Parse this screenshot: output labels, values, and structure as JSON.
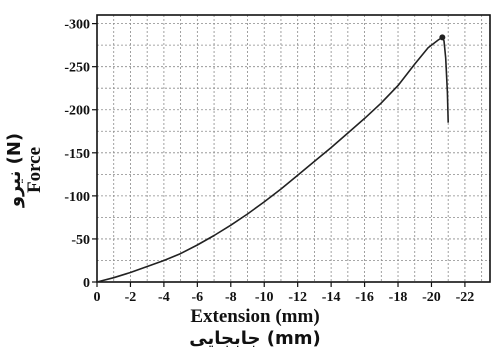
{
  "chart_data": {
    "type": "line",
    "xlabel": "Extension (mm)",
    "xlabel_alt": "جابجایی (mm)",
    "ylabel": "Force",
    "ylabel_alt": "نیرو (N)",
    "xlim": [
      0,
      23.5
    ],
    "ylim": [
      0,
      310
    ],
    "x_ticks": [
      0,
      2,
      4,
      6,
      8,
      10,
      12,
      14,
      16,
      18,
      20,
      22
    ],
    "x_tick_labels": [
      "0",
      "-2",
      "-4",
      "-6",
      "-8",
      "-10",
      "-12",
      "-14",
      "-16",
      "-18",
      "-20",
      "-22"
    ],
    "y_ticks": [
      0,
      50,
      100,
      150,
      200,
      250,
      300
    ],
    "y_tick_labels": [
      "0",
      "-50",
      "-100",
      "-150",
      "-200",
      "-250",
      "-300"
    ],
    "grid": true,
    "grid_style": "dashed",
    "series": [
      {
        "color": "#222222",
        "x": [
          0,
          1,
          2,
          3,
          4,
          5,
          6,
          7,
          8,
          9,
          10,
          11,
          12,
          13,
          14,
          15,
          16,
          17,
          18,
          19,
          19.8,
          20.4,
          20.65,
          20.75,
          20.85,
          20.95,
          21.0
        ],
        "y": [
          0,
          5,
          11,
          18,
          25,
          33,
          43,
          54,
          66,
          79,
          93,
          108,
          124,
          140,
          156,
          173,
          190,
          208,
          228,
          253,
          272,
          281,
          284,
          280,
          260,
          220,
          185
        ]
      }
    ],
    "markers": [
      {
        "x": 20.65,
        "y": 284
      }
    ]
  }
}
